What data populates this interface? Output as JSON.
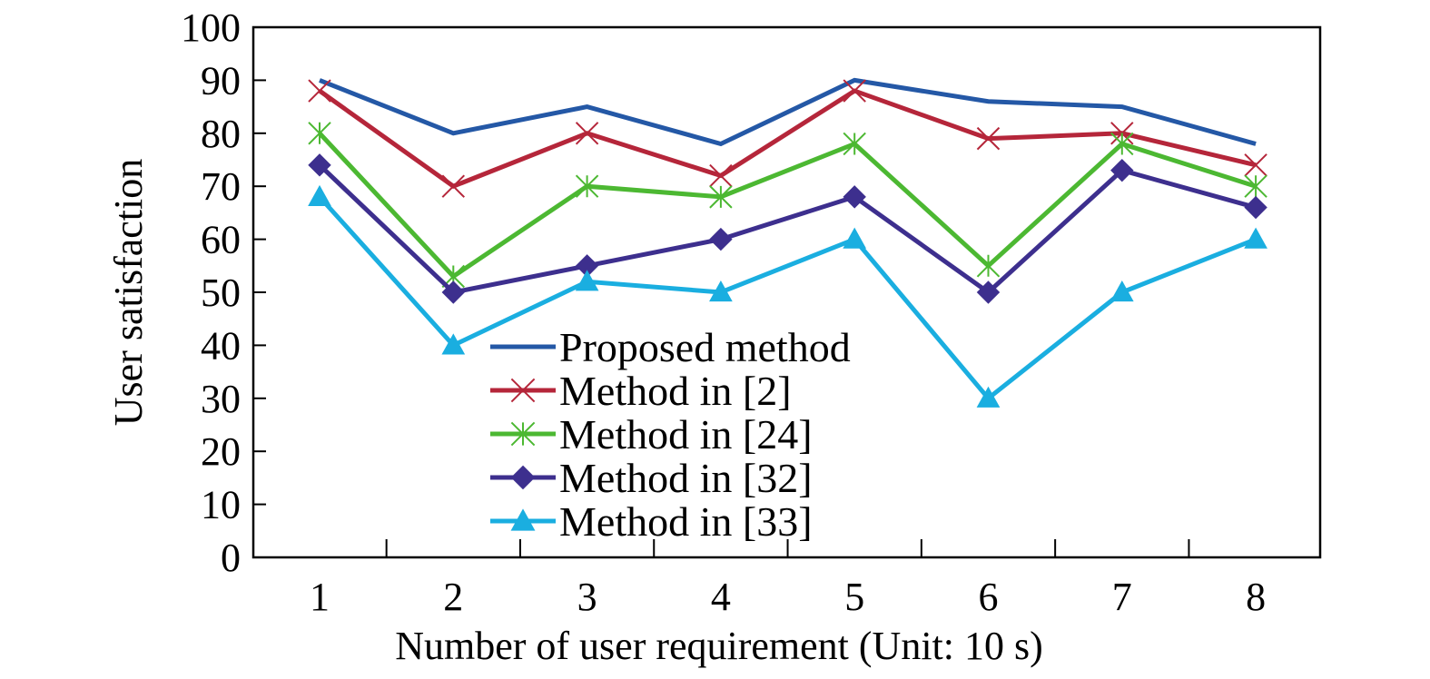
{
  "chart_data": {
    "type": "line",
    "xlabel": "Number of user requirement (Unit: 10 s)",
    "ylabel": "User satisfaction",
    "x": [
      1,
      2,
      3,
      4,
      5,
      6,
      7,
      8
    ],
    "x_tick_labels": [
      "1",
      "2",
      "3",
      "4",
      "5",
      "6",
      "7",
      "8"
    ],
    "ylim": [
      0,
      100
    ],
    "y_ticks": [
      0,
      10,
      20,
      30,
      40,
      50,
      60,
      70,
      80,
      90,
      100
    ],
    "y_tick_labels": [
      "0",
      "10",
      "20",
      "30",
      "40",
      "50",
      "60",
      "70",
      "80",
      "90",
      "100"
    ],
    "grid": false,
    "legend_position": "bottom-center",
    "series": [
      {
        "name": "Proposed method",
        "color": "#2458a6",
        "marker": "none",
        "values": [
          90,
          80,
          85,
          78,
          90,
          86,
          85,
          78
        ]
      },
      {
        "name": "Method in [2]",
        "color": "#b5263a",
        "marker": "x",
        "values": [
          88,
          70,
          80,
          72,
          88,
          79,
          80,
          74
        ]
      },
      {
        "name": "Method in [24]",
        "color": "#4cb832",
        "marker": "asterisk",
        "values": [
          80,
          53,
          70,
          68,
          78,
          55,
          78,
          70
        ]
      },
      {
        "name": "Method in [32]",
        "color": "#3d2f8e",
        "marker": "diamond",
        "values": [
          74,
          50,
          55,
          60,
          68,
          50,
          73,
          66
        ]
      },
      {
        "name": "Method in [33]",
        "color": "#1aaee0",
        "marker": "triangle",
        "values": [
          68,
          40,
          52,
          50,
          60,
          30,
          50,
          60
        ]
      }
    ]
  }
}
